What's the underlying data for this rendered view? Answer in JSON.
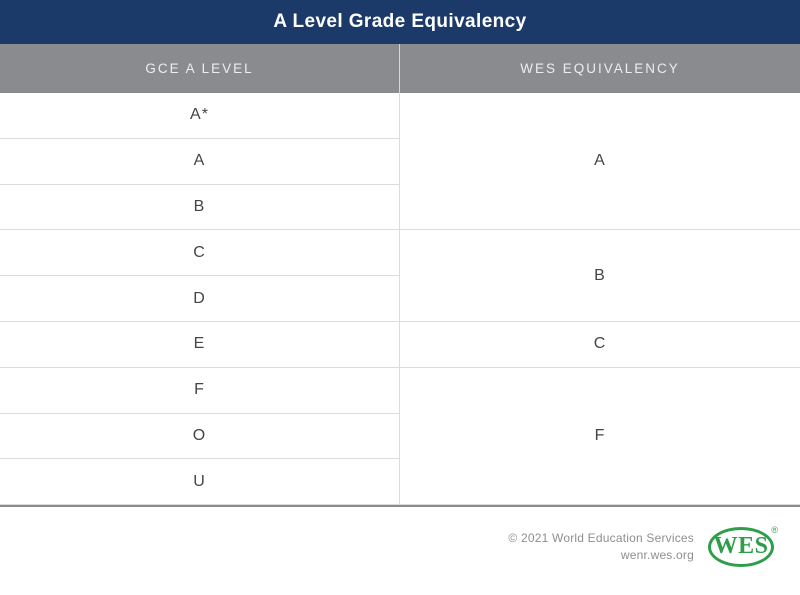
{
  "banner": {
    "title": "A Level Grade Equivalency"
  },
  "table": {
    "headers": [
      "GCE A LEVEL",
      "WES EQUIVALENCY"
    ],
    "gce_rows": [
      "A*",
      "A",
      "B",
      "C",
      "D",
      "E",
      "F",
      "O",
      "U"
    ],
    "wes_cells": [
      {
        "label": "A",
        "span": 3
      },
      {
        "label": "B",
        "span": 2
      },
      {
        "label": "C",
        "span": 1
      },
      {
        "label": "F",
        "span": 3
      }
    ]
  },
  "footer": {
    "copyright": "© 2021 World Education Services",
    "site": "wenr.wes.org",
    "logo_text": "WES",
    "registered_mark": "®"
  },
  "colors": {
    "banner_navy": "#1c3a69",
    "header_gray": "#8a8b8e",
    "logo_green": "#2e9e4a",
    "row_border": "#dcdcdc",
    "table_bottom_border": "#8a8b8d",
    "cell_text": "#454545",
    "footer_text": "#8f8f8f"
  },
  "chart_data": {
    "type": "table",
    "title": "A Level Grade Equivalency",
    "columns": [
      "GCE A LEVEL",
      "WES EQUIVALENCY"
    ],
    "rows": [
      [
        "A*",
        "A"
      ],
      [
        "A",
        "A"
      ],
      [
        "B",
        "A"
      ],
      [
        "C",
        "B"
      ],
      [
        "D",
        "B"
      ],
      [
        "E",
        "C"
      ],
      [
        "F",
        "F"
      ],
      [
        "O",
        "F"
      ],
      [
        "U",
        "F"
      ]
    ],
    "merged_wes_groups": [
      {
        "wes": "A",
        "gce": [
          "A*",
          "A",
          "B"
        ]
      },
      {
        "wes": "B",
        "gce": [
          "C",
          "D"
        ]
      },
      {
        "wes": "C",
        "gce": [
          "E"
        ]
      },
      {
        "wes": "F",
        "gce": [
          "F",
          "O",
          "U"
        ]
      }
    ]
  }
}
